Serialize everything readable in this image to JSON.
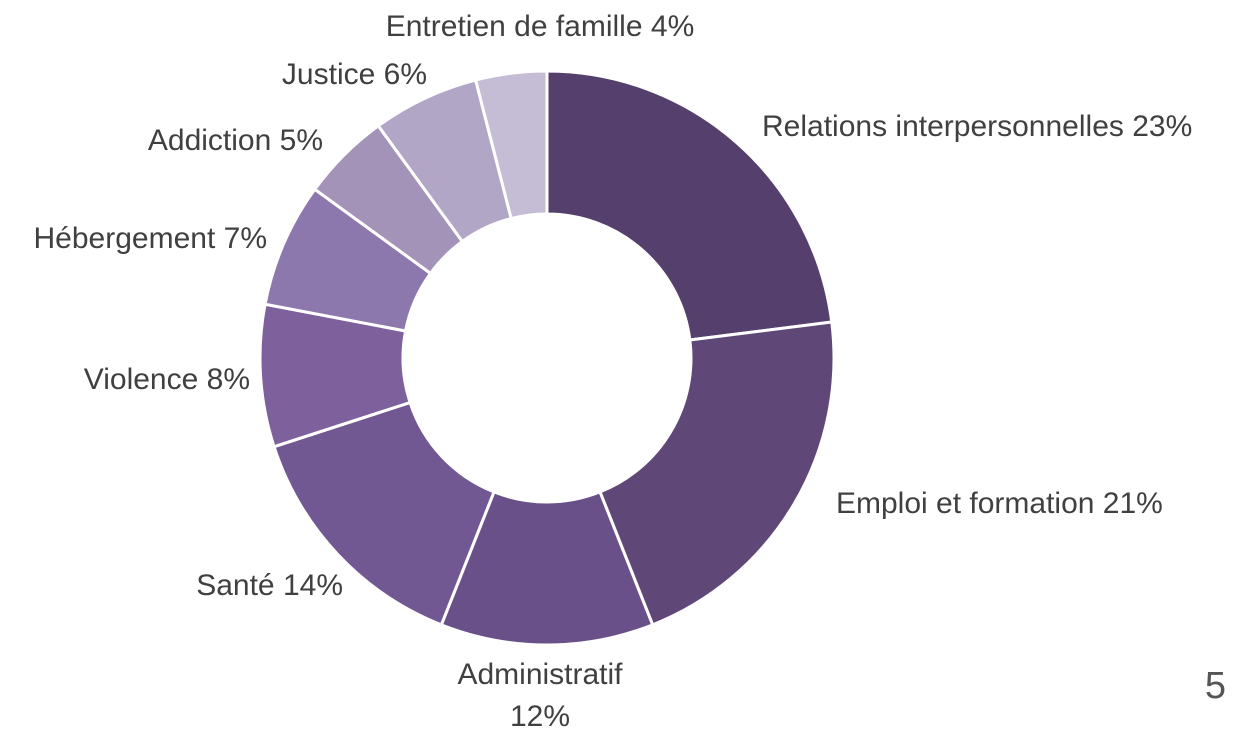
{
  "chart_data": {
    "type": "donut",
    "categories": [
      "Relations interpersonnelles",
      "Emploi et formation",
      "Administratif",
      "Santé",
      "Violence",
      "Hébergement",
      "Addiction",
      "Justice",
      "Entretien de famille"
    ],
    "values": [
      23,
      21,
      12,
      14,
      8,
      7,
      5,
      6,
      4
    ],
    "value_labels": [
      "23%",
      "21%",
      "12%",
      "14%",
      "8%",
      "7%",
      "5%",
      "6%",
      "4%"
    ],
    "colors": [
      "#55406d",
      "#5f4878",
      "#6a5089",
      "#725893",
      "#7d609c",
      "#8d78ae",
      "#a393b9",
      "#b2a6c6",
      "#c5bcd5"
    ]
  },
  "page_number": "5"
}
